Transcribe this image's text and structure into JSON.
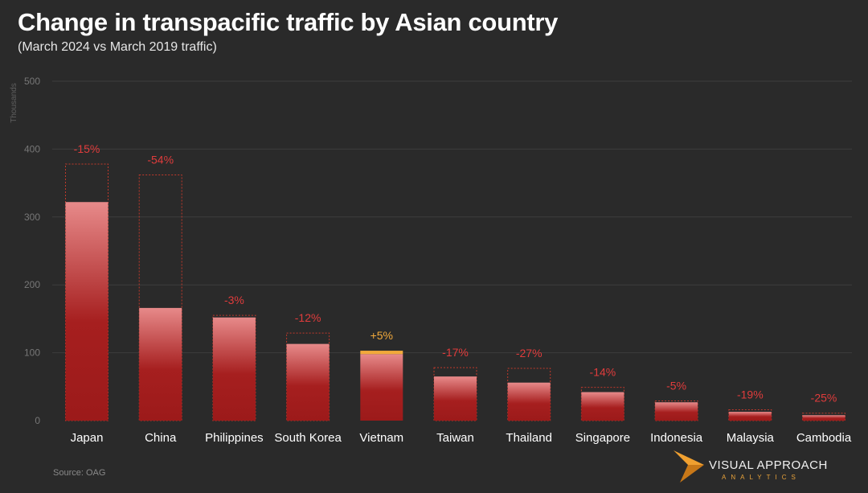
{
  "title": "Change in transpacific traffic by Asian country",
  "subtitle": "(March 2024 vs March 2019 traffic)",
  "source": "Source:  OAG",
  "logo": {
    "name": "VISUAL APPROACH",
    "sub": "ANALYTICS"
  },
  "colors": {
    "background": "#2a2a2a",
    "bar_top": "#e78a8a",
    "bar_bottom": "#a01c1c",
    "decline": "#e03c3c",
    "growth": "#f2a93b",
    "gridline": "#3d3d3d",
    "ghost_outline": "#c0392b"
  },
  "chart_data": {
    "type": "bar",
    "ylabel": "Thousands",
    "ylim": [
      0,
      500
    ],
    "yticks": [
      0,
      100,
      200,
      300,
      400,
      500
    ],
    "grid": true,
    "categories": [
      "Japan",
      "China",
      "Philippines",
      "South Korea",
      "Vietnam",
      "Taiwan",
      "Thailand",
      "Singapore",
      "Indonesia",
      "Malaysia",
      "Cambodia"
    ],
    "series": [
      {
        "name": "March 2019",
        "values": [
          378,
          362,
          155,
          129,
          98,
          78,
          77,
          49,
          29,
          16,
          11
        ]
      },
      {
        "name": "March 2024",
        "values": [
          322,
          166,
          152,
          113,
          103,
          65,
          56,
          42,
          27,
          13,
          8
        ]
      }
    ],
    "change_labels": [
      "-15%",
      "-54%",
      "-3%",
      "-12%",
      "+5%",
      "-17%",
      "-27%",
      "-14%",
      "-5%",
      "-19%",
      "-25%"
    ]
  }
}
